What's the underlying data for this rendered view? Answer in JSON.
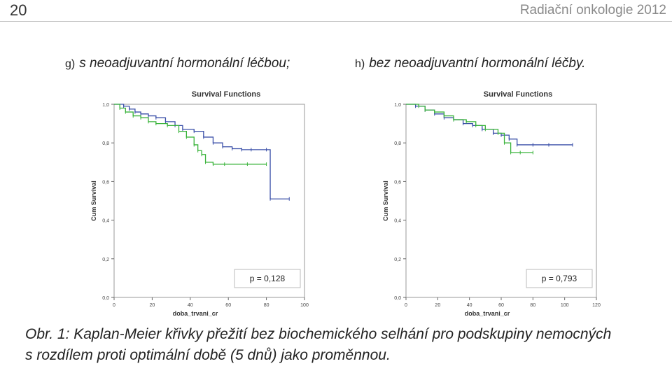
{
  "header": {
    "page_number": "20",
    "journal": "Radiační onkologie 2012"
  },
  "panels": [
    {
      "prefix": "g)",
      "caption": "s neoadjuvantní hormonální léčbou;"
    },
    {
      "prefix": "h)",
      "caption": "bez neoadjuvantní hormonální léčby."
    }
  ],
  "figure_caption": {
    "line1": "Obr. 1: Kaplan-Meier křivky přežití bez biochemického selhání pro podskupiny nemocných",
    "line2": "s rozdílem proti optimální době (5 dnů) jako proměnnou."
  },
  "chart_data": [
    {
      "type": "line",
      "title": "Survival Functions",
      "xlabel": "doba_trvani_cr",
      "ylabel": "Cum Survival",
      "xlim": [
        0,
        100
      ],
      "ylim": [
        0,
        1.0
      ],
      "x_ticks": [
        "0",
        "20",
        "40",
        "60",
        "80",
        "100"
      ],
      "y_ticks": [
        "0,0",
        "0,2",
        "0,4",
        "0,6",
        "0,8",
        "1,0"
      ],
      "annotation": "p = 0,128",
      "series": [
        {
          "color": "#3a4fa8",
          "x": [
            0,
            5,
            8,
            11,
            14,
            18,
            22,
            27,
            32,
            36,
            42,
            47,
            52,
            57,
            62,
            67,
            72,
            80,
            82,
            92
          ],
          "y": [
            1.0,
            0.99,
            0.975,
            0.96,
            0.95,
            0.94,
            0.93,
            0.91,
            0.89,
            0.87,
            0.86,
            0.83,
            0.8,
            0.78,
            0.77,
            0.765,
            0.765,
            0.765,
            0.51,
            0.51
          ]
        },
        {
          "color": "#39b33a",
          "x": [
            0,
            3,
            6,
            10,
            14,
            18,
            22,
            28,
            34,
            38,
            42,
            44,
            46,
            48,
            52,
            58,
            70,
            80
          ],
          "y": [
            1.0,
            0.98,
            0.96,
            0.94,
            0.93,
            0.91,
            0.9,
            0.89,
            0.86,
            0.83,
            0.79,
            0.76,
            0.74,
            0.7,
            0.69,
            0.69,
            0.69,
            0.69
          ]
        }
      ]
    },
    {
      "type": "line",
      "title": "Survival Functions",
      "xlabel": "doba_trvani_cr",
      "ylabel": "Cum Survival",
      "xlim": [
        0,
        120
      ],
      "ylim": [
        0,
        1.0
      ],
      "x_ticks": [
        "0",
        "20",
        "40",
        "60",
        "80",
        "100",
        "120"
      ],
      "y_ticks": [
        "0,0",
        "0,2",
        "0,4",
        "0,6",
        "0,8",
        "1,0"
      ],
      "annotation": "p = 0,793",
      "series": [
        {
          "color": "#3a4fa8",
          "x": [
            0,
            6,
            12,
            18,
            24,
            30,
            36,
            42,
            48,
            55,
            60,
            65,
            70,
            80,
            90,
            105
          ],
          "y": [
            1.0,
            0.99,
            0.97,
            0.95,
            0.93,
            0.92,
            0.9,
            0.89,
            0.87,
            0.85,
            0.84,
            0.82,
            0.79,
            0.79,
            0.79,
            0.79
          ]
        },
        {
          "color": "#39b33a",
          "x": [
            0,
            8,
            12,
            18,
            24,
            30,
            38,
            44,
            50,
            58,
            62,
            66,
            72,
            80
          ],
          "y": [
            1.0,
            0.99,
            0.97,
            0.96,
            0.94,
            0.92,
            0.91,
            0.89,
            0.87,
            0.85,
            0.8,
            0.75,
            0.75,
            0.75
          ]
        }
      ]
    }
  ]
}
